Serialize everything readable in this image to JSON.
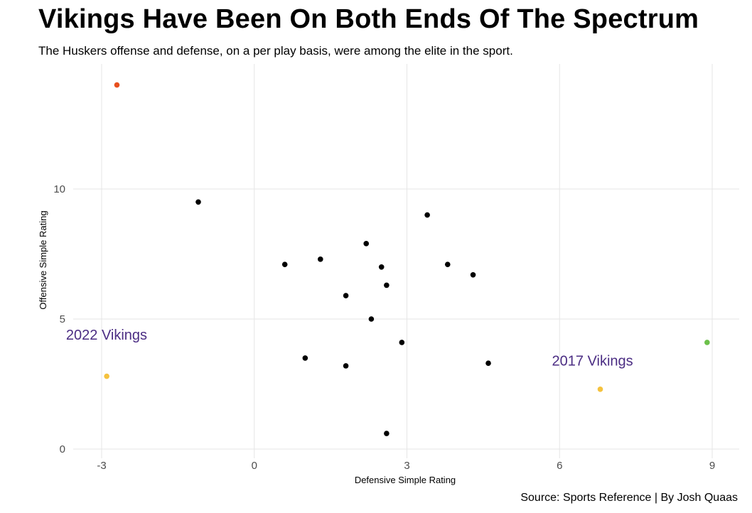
{
  "title": "Vikings Have Been On Both Ends Of The Spectrum",
  "subtitle": "The Huskers offense and defense, on a per play basis, were among the elite in the sport.",
  "caption": "Source: Sports Reference | By Josh Quaas",
  "chart_data": {
    "type": "scatter",
    "xlabel": "Defensive Simple Rating",
    "ylabel": "Offensive Simple Rating",
    "xlim": [
      -3.6,
      9.5
    ],
    "ylim": [
      -0.4,
      14.9
    ],
    "x_ticks": [
      -3,
      0,
      3,
      6,
      9
    ],
    "y_ticks": [
      0,
      5,
      10
    ],
    "grid": true,
    "points": [
      {
        "x": -2.7,
        "y": 14.0,
        "color": "#e8501e"
      },
      {
        "x": -2.9,
        "y": 2.8,
        "color": "#f5c23e"
      },
      {
        "x": 6.8,
        "y": 2.3,
        "color": "#f5c23e"
      },
      {
        "x": 8.9,
        "y": 4.1,
        "color": "#6cc04a"
      },
      {
        "x": -1.1,
        "y": 9.5,
        "color": "#000000"
      },
      {
        "x": 3.4,
        "y": 9.0,
        "color": "#000000"
      },
      {
        "x": 2.2,
        "y": 7.9,
        "color": "#000000"
      },
      {
        "x": 1.3,
        "y": 7.3,
        "color": "#000000"
      },
      {
        "x": 0.6,
        "y": 7.1,
        "color": "#000000"
      },
      {
        "x": 3.8,
        "y": 7.1,
        "color": "#000000"
      },
      {
        "x": 2.5,
        "y": 7.0,
        "color": "#000000"
      },
      {
        "x": 4.3,
        "y": 6.7,
        "color": "#000000"
      },
      {
        "x": 2.6,
        "y": 6.3,
        "color": "#000000"
      },
      {
        "x": 1.8,
        "y": 5.9,
        "color": "#000000"
      },
      {
        "x": 2.3,
        "y": 5.0,
        "color": "#000000"
      },
      {
        "x": 2.9,
        "y": 4.1,
        "color": "#000000"
      },
      {
        "x": 1.0,
        "y": 3.5,
        "color": "#000000"
      },
      {
        "x": 4.6,
        "y": 3.3,
        "color": "#000000"
      },
      {
        "x": 1.8,
        "y": 3.2,
        "color": "#000000"
      },
      {
        "x": 2.6,
        "y": 0.6,
        "color": "#000000"
      }
    ],
    "annotations": [
      {
        "text": "2022 Vikings",
        "x": -3.7,
        "y": 4.4
      },
      {
        "text": "2017 Vikings",
        "x": 5.85,
        "y": 3.4
      }
    ]
  }
}
